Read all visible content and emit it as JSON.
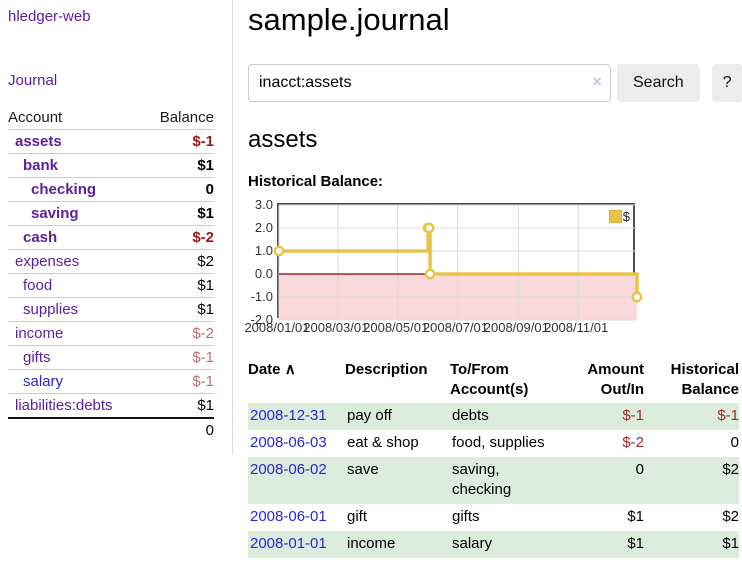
{
  "app": {
    "title": "hledger-web"
  },
  "sidebar": {
    "journal_link": "Journal",
    "accounts_table": {
      "headers": {
        "account": "Account",
        "balance": "Balance"
      },
      "rows": [
        {
          "account": "assets",
          "balance": "$-1",
          "depth": 0,
          "bold": true,
          "negative": true,
          "blue": false
        },
        {
          "account": "bank",
          "balance": "$1",
          "depth": 1,
          "bold": true,
          "negative": false,
          "blue": false
        },
        {
          "account": "checking",
          "balance": "0",
          "depth": 2,
          "bold": true,
          "negative": false,
          "blue": false
        },
        {
          "account": "saving",
          "balance": "$1",
          "depth": 2,
          "bold": true,
          "negative": false,
          "blue": false
        },
        {
          "account": "cash",
          "balance": "$-2",
          "depth": 1,
          "bold": true,
          "negative": true,
          "blue": false
        },
        {
          "account": "expenses",
          "balance": "$2",
          "depth": 0,
          "bold": false,
          "negative": false,
          "blue": false
        },
        {
          "account": "food",
          "balance": "$1",
          "depth": 1,
          "bold": false,
          "negative": false,
          "blue": false
        },
        {
          "account": "supplies",
          "balance": "$1",
          "depth": 1,
          "bold": false,
          "negative": false,
          "blue": false
        },
        {
          "account": "income",
          "balance": "$-2",
          "depth": 0,
          "bold": false,
          "negative": true,
          "blue": false
        },
        {
          "account": "gifts",
          "balance": "$-1",
          "depth": 1,
          "bold": false,
          "negative": true,
          "blue": false
        },
        {
          "account": "salary",
          "balance": "$-1",
          "depth": 1,
          "bold": false,
          "negative": true,
          "blue": true
        },
        {
          "account": "liabilities:debts",
          "balance": "$1",
          "depth": 0,
          "bold": false,
          "negative": false,
          "blue": false
        }
      ],
      "total": "0"
    }
  },
  "main": {
    "title": "sample.journal",
    "search": {
      "value": "inacct:assets",
      "clear_icon": "×",
      "search_button": "Search",
      "help_button": "?"
    },
    "account_heading": "assets",
    "section_label": "Historical Balance:"
  },
  "chart_data": {
    "type": "line",
    "step": true,
    "title": "Historical Balance",
    "series": [
      {
        "name": "$",
        "points": [
          {
            "date": "2008-01-01",
            "day": 0,
            "value": 1
          },
          {
            "date": "2008-06-01",
            "day": 152,
            "value": 2
          },
          {
            "date": "2008-06-02",
            "day": 153,
            "value": 2
          },
          {
            "date": "2008-06-03",
            "day": 154,
            "value": 0
          },
          {
            "date": "2008-12-31",
            "day": 365,
            "value": -1
          }
        ]
      }
    ],
    "x_domain_days": [
      0,
      365
    ],
    "x_ticks": [
      {
        "label": "2008/01/01",
        "day": 0
      },
      {
        "label": "2008/03/01",
        "day": 60
      },
      {
        "label": "2008/05/01",
        "day": 121
      },
      {
        "label": "2008/07/01",
        "day": 182
      },
      {
        "label": "2008/09/01",
        "day": 244
      },
      {
        "label": "2008/11/01",
        "day": 305
      }
    ],
    "y_ticks": [
      "3.0",
      "2.0",
      "1.0",
      "0.0",
      "-1.0",
      "-2.0"
    ],
    "ylim": [
      -2,
      3
    ],
    "grid": true,
    "legend": {
      "label": "$",
      "position": "top-right"
    }
  },
  "register": {
    "headers": {
      "date": "Date",
      "sort_icon": "∧",
      "description": "Description",
      "accounts": "To/From Account(s)",
      "amount": "Amount Out/In",
      "balance": "Historical Balance"
    },
    "rows": [
      {
        "date": "2008-12-31",
        "description": "pay off",
        "accounts": "debts",
        "amount": "$-1",
        "balance": "$-1",
        "amount_negative": true,
        "balance_negative": true,
        "green": true
      },
      {
        "date": "2008-06-03",
        "description": "eat & shop",
        "accounts": "food, supplies",
        "amount": "$-2",
        "balance": "0",
        "amount_negative": true,
        "balance_negative": false,
        "green": false
      },
      {
        "date": "2008-06-02",
        "description": "save",
        "accounts": "saving, checking",
        "amount": "0",
        "balance": "$2",
        "amount_negative": false,
        "balance_negative": false,
        "green": true
      },
      {
        "date": "2008-06-01",
        "description": "gift",
        "accounts": "gifts",
        "amount": "$1",
        "balance": "$2",
        "amount_negative": false,
        "balance_negative": false,
        "green": false
      },
      {
        "date": "2008-01-01",
        "description": "income",
        "accounts": "salary",
        "amount": "$1",
        "balance": "$1",
        "amount_negative": false,
        "balance_negative": false,
        "green": true
      }
    ]
  },
  "colors": {
    "link_purple": "#5a1e9e",
    "link_blue": "#2727d8",
    "negative": "#9e1616",
    "negative_muted": "#c06a6f",
    "table_negative": "#9e2a2a",
    "row_green": "#dcecdc",
    "chart_line": "#e9c34a",
    "chart_negative_region": "#f9d9dc",
    "zero_line": "#8b0000",
    "grid_line": "#dcdcdc",
    "chart_border": "#4d4d4d"
  }
}
